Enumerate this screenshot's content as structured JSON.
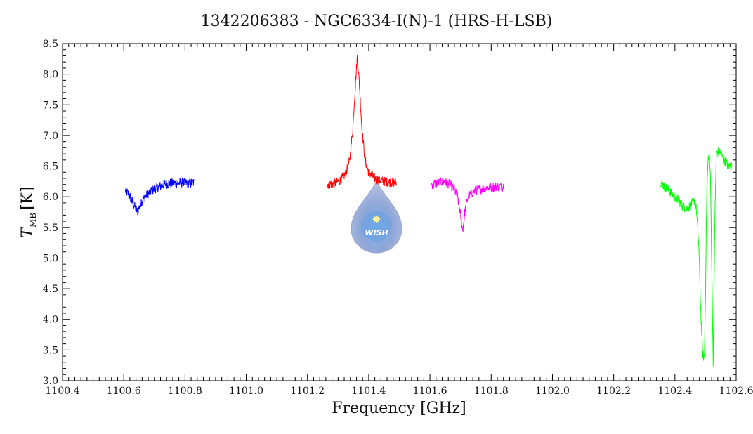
{
  "chart_data": {
    "type": "line",
    "title": "1342206383 - NGC6334-I(N)-1 (HRS-H-LSB)",
    "xlabel": "Frequency [GHz]",
    "ylabel": "T",
    "ylabel_sub": "MB",
    "ylabel_unit": "[K]",
    "xlim": [
      1100.4,
      1102.6
    ],
    "ylim": [
      3.0,
      8.5
    ],
    "xticks": [
      "1100.4",
      "1100.6",
      "1100.8",
      "1101.0",
      "1101.2",
      "1101.4",
      "1101.6",
      "1101.8",
      "1102.0",
      "1102.2",
      "1102.4",
      "1102.6"
    ],
    "yticks": [
      "3.0",
      "3.5",
      "4.0",
      "4.5",
      "5.0",
      "5.5",
      "6.0",
      "6.5",
      "7.0",
      "7.5",
      "8.0",
      "8.5"
    ],
    "grid": false,
    "legend": "none",
    "logo_text": "WISH",
    "series": [
      {
        "color": "#0000ff",
        "points": [
          [
            1100.605,
            6.1
          ],
          [
            1100.615,
            6.05
          ],
          [
            1100.625,
            5.95
          ],
          [
            1100.635,
            5.85
          ],
          [
            1100.645,
            5.75
          ],
          [
            1100.655,
            5.9
          ],
          [
            1100.67,
            6.0
          ],
          [
            1100.69,
            6.1
          ],
          [
            1100.71,
            6.15
          ],
          [
            1100.73,
            6.2
          ],
          [
            1100.75,
            6.22
          ],
          [
            1100.77,
            6.22
          ],
          [
            1100.79,
            6.23
          ],
          [
            1100.81,
            6.22
          ],
          [
            1100.83,
            6.23
          ]
        ]
      },
      {
        "color": "#ff0000",
        "points": [
          [
            1101.262,
            6.2
          ],
          [
            1101.29,
            6.22
          ],
          [
            1101.31,
            6.28
          ],
          [
            1101.325,
            6.38
          ],
          [
            1101.338,
            6.6
          ],
          [
            1101.348,
            7.1
          ],
          [
            1101.356,
            7.8
          ],
          [
            1101.363,
            8.3
          ],
          [
            1101.37,
            7.8
          ],
          [
            1101.378,
            7.1
          ],
          [
            1101.388,
            6.6
          ],
          [
            1101.4,
            6.4
          ],
          [
            1101.42,
            6.3
          ],
          [
            1101.45,
            6.25
          ],
          [
            1101.49,
            6.23
          ]
        ]
      },
      {
        "color": "#ff00ff",
        "points": [
          [
            1101.605,
            6.2
          ],
          [
            1101.625,
            6.22
          ],
          [
            1101.645,
            6.25
          ],
          [
            1101.665,
            6.2
          ],
          [
            1101.68,
            6.12
          ],
          [
            1101.69,
            6.0
          ],
          [
            1101.7,
            5.7
          ],
          [
            1101.707,
            5.45
          ],
          [
            1101.714,
            5.75
          ],
          [
            1101.724,
            6.0
          ],
          [
            1101.74,
            6.08
          ],
          [
            1101.76,
            6.12
          ],
          [
            1101.79,
            6.15
          ],
          [
            1101.84,
            6.17
          ]
        ]
      },
      {
        "color": "#00ff00",
        "points": [
          [
            1102.352,
            6.25
          ],
          [
            1102.37,
            6.15
          ],
          [
            1102.39,
            6.05
          ],
          [
            1102.41,
            5.95
          ],
          [
            1102.425,
            5.85
          ],
          [
            1102.44,
            5.8
          ],
          [
            1102.455,
            5.88
          ],
          [
            1102.465,
            5.95
          ],
          [
            1102.47,
            5.8
          ],
          [
            1102.478,
            5.2
          ],
          [
            1102.484,
            4.2
          ],
          [
            1102.49,
            3.45
          ],
          [
            1102.496,
            3.35
          ],
          [
            1102.5,
            4.5
          ],
          [
            1102.504,
            6.05
          ],
          [
            1102.508,
            6.6
          ],
          [
            1102.512,
            6.7
          ],
          [
            1102.516,
            6.3
          ],
          [
            1102.52,
            5.0
          ],
          [
            1102.525,
            3.3
          ],
          [
            1102.53,
            5.5
          ],
          [
            1102.535,
            6.7
          ],
          [
            1102.545,
            6.75
          ],
          [
            1102.56,
            6.6
          ],
          [
            1102.575,
            6.5
          ],
          [
            1102.585,
            6.52
          ]
        ]
      }
    ]
  }
}
